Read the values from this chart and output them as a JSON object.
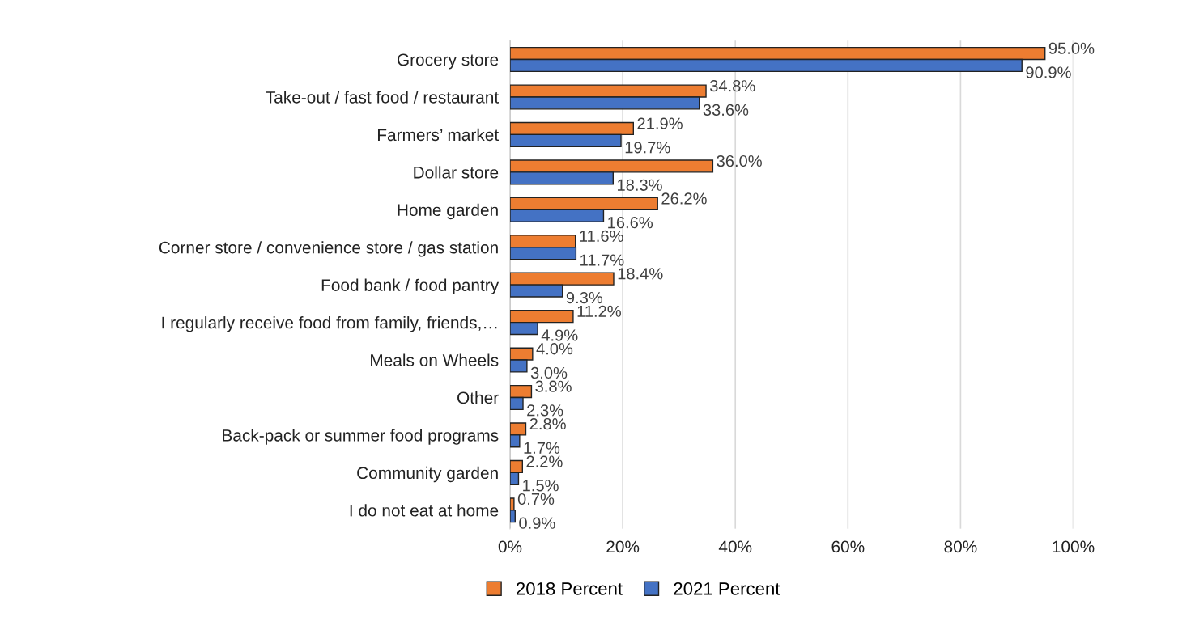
{
  "chart_data": {
    "type": "bar",
    "orientation": "horizontal",
    "categories": [
      "Grocery store",
      "Take-out / fast food / restaurant",
      "Farmers’ market",
      "Dollar store",
      "Home garden",
      "Corner store / convenience store / gas station",
      "Food bank / food pantry",
      "I regularly receive food from family, friends,…",
      "Meals on Wheels",
      "Other",
      "Back-pack or summer food programs",
      "Community garden",
      "I do not eat at home"
    ],
    "series": [
      {
        "name": "2018 Percent",
        "color": "#ed7d31",
        "values": [
          95.0,
          34.8,
          21.9,
          36.0,
          26.2,
          11.6,
          18.4,
          11.2,
          4.0,
          3.8,
          2.8,
          2.2,
          0.7
        ],
        "value_labels": [
          "95.0%",
          "34.8%",
          "21.9%",
          "36.0%",
          "26.2%",
          "11.6%",
          "18.4%",
          "11.2%",
          "4.0%",
          "3.8%",
          "2.8%",
          "2.2%",
          "0.7%"
        ]
      },
      {
        "name": "2021 Percent",
        "color": "#4472c4",
        "values": [
          90.9,
          33.6,
          19.7,
          18.3,
          16.6,
          11.7,
          9.3,
          4.9,
          3.0,
          2.3,
          1.7,
          1.5,
          0.9
        ],
        "value_labels": [
          "90.9%",
          "33.6%",
          "19.7%",
          "18.3%",
          "16.6%",
          "11.7%",
          "9.3%",
          "4.9%",
          "3.0%",
          "2.3%",
          "1.7%",
          "1.5%",
          "0.9%"
        ]
      }
    ],
    "xlim": [
      0,
      100
    ],
    "xticks": [
      {
        "value": 0,
        "label": "0%"
      },
      {
        "value": 20,
        "label": "20%"
      },
      {
        "value": 40,
        "label": "40%"
      },
      {
        "value": 60,
        "label": "60%"
      },
      {
        "value": 80,
        "label": "80%"
      },
      {
        "value": 100,
        "label": "100%"
      }
    ],
    "grid": "x",
    "legend": "bottom"
  }
}
